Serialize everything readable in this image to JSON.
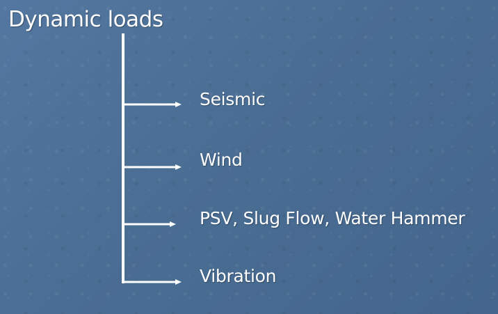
{
  "title": "Dynamic loads",
  "items": [
    {
      "label": "Seismic"
    },
    {
      "label": "Wind"
    },
    {
      "label": "PSV, Slug Flow, Water Hammer"
    },
    {
      "label": "Vibration"
    }
  ],
  "colors": {
    "background": "#4d6f93",
    "text": "#ffffff",
    "connector": "#ffffff"
  }
}
